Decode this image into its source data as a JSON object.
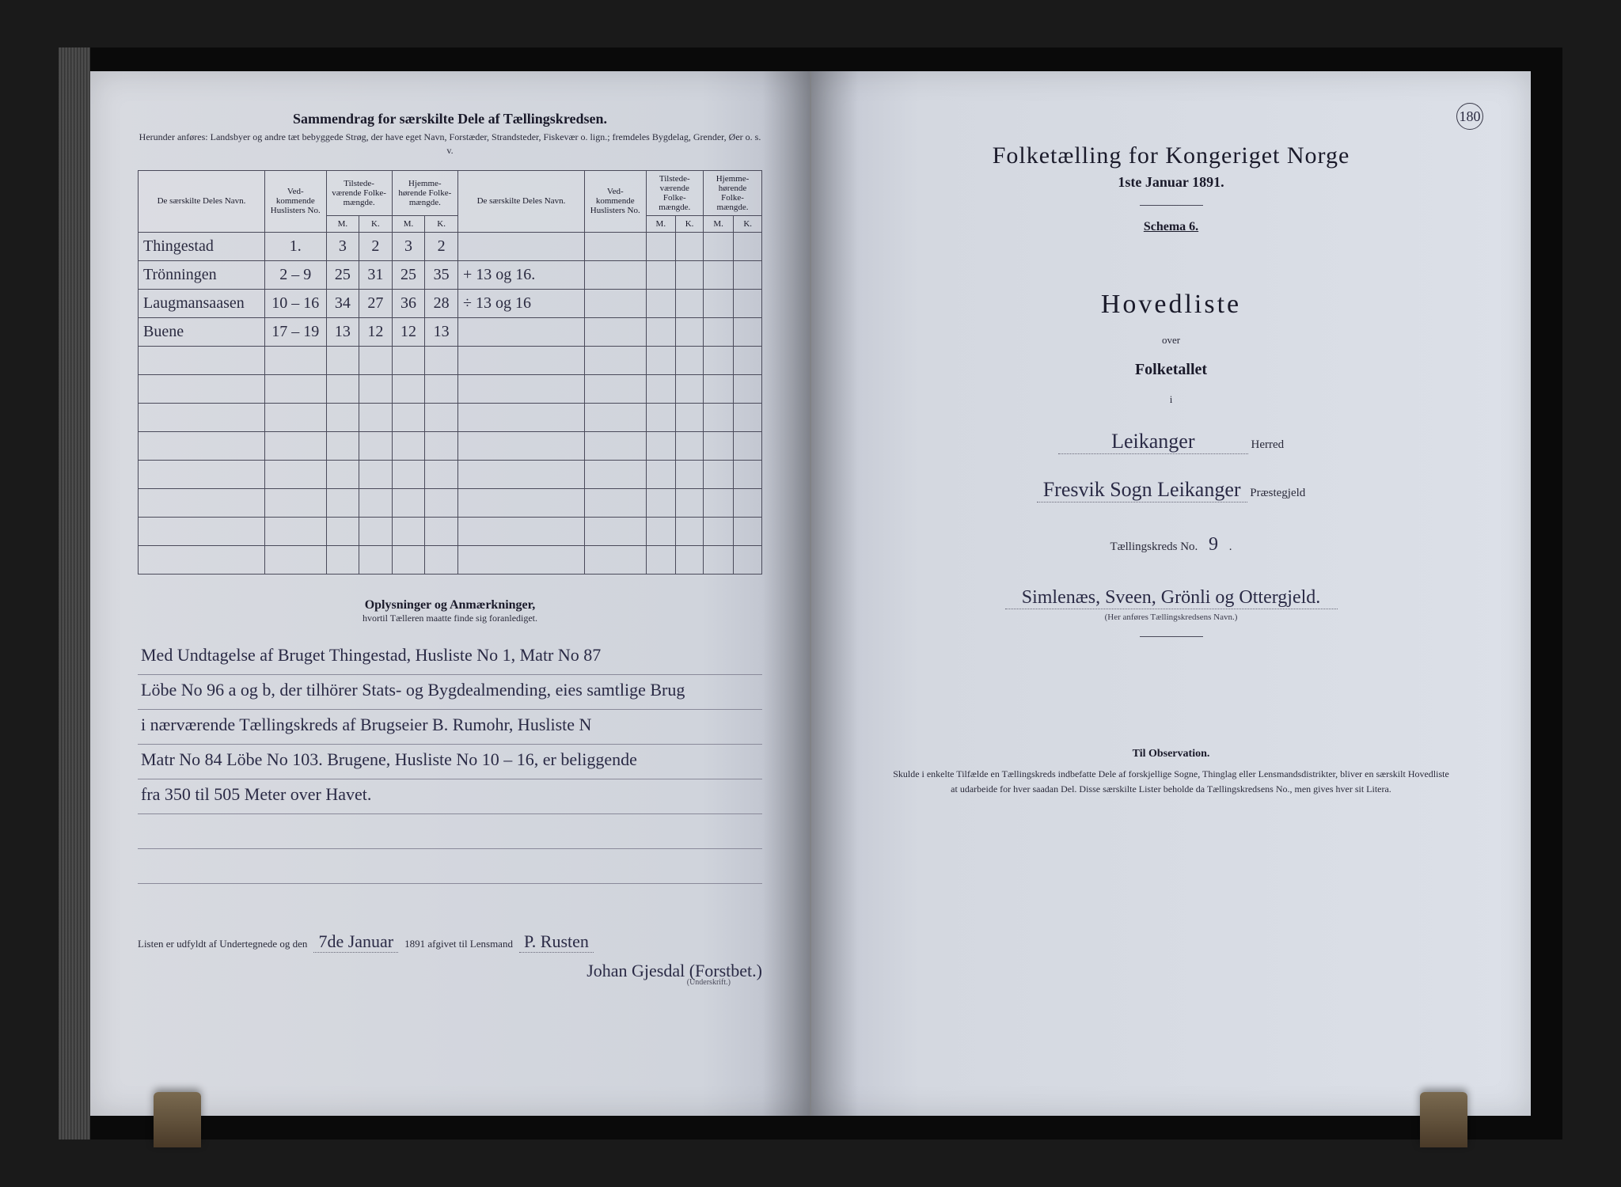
{
  "colors": {
    "paper": "#d4d8e0",
    "ink": "#1a1a2a",
    "handwriting": "#2a2a45",
    "rule": "#4a4a5a",
    "background": "#1a1a1a"
  },
  "leftPage": {
    "sectionTitle": "Sammendrag for særskilte Dele af Tællingskredsen.",
    "sectionSub": "Herunder anføres: Landsbyer og andre tæt bebyggede Strøg, der have eget Navn, Forstæder, Strandsteder, Fiskevær o. lign.; fremdeles Bygdelag, Grender, Øer o. s. v.",
    "table": {
      "headers": {
        "name": "De særskilte Deles Navn.",
        "listNo": "Ved-kommende Huslisters No.",
        "present": "Tilstede-værende Folke-mængde.",
        "resident": "Hjemme-hørende Folke-mængde.",
        "m": "M.",
        "k": "K."
      },
      "rows": [
        {
          "name": "Thingestad",
          "list": "1.",
          "pm": "3",
          "pk": "2",
          "rm": "3",
          "rk": "2",
          "note": ""
        },
        {
          "name": "Trönningen",
          "list": "2 – 9",
          "pm": "25",
          "pk": "31",
          "rm": "25",
          "rk": "35",
          "note": "+ 13 og 16."
        },
        {
          "name": "Laugmansaasen",
          "list": "10 – 16",
          "pm": "34",
          "pk": "27",
          "rm": "36",
          "rk": "28",
          "note": "÷ 13 og 16"
        },
        {
          "name": "Buene",
          "list": "17 – 19",
          "pm": "13",
          "pk": "12",
          "rm": "12",
          "rk": "13",
          "note": ""
        }
      ],
      "emptyRows": 8
    },
    "remarksTitle": "Oplysninger og Anmærkninger,",
    "remarksSub": "hvortil Tælleren maatte finde sig foranlediget.",
    "remarksLines": [
      "Med Undtagelse af Bruget Thingestad, Husliste No 1, Matr No 87",
      "Löbe No 96 a og b, der tilhörer Stats- og Bygdealmending, eies samtlige Brug",
      "i nærværende Tællingskreds af Brugseier B. Rumohr, Husliste N",
      "Matr No 84 Löbe No 103. Brugene, Husliste No 10 – 16, er beliggende",
      "fra 350 til 505 Meter over Havet."
    ],
    "signature": {
      "prefix": "Listen er udfyldt af Undertegnede og den",
      "date": "7de Januar",
      "year": "1891 afgivet til Lensmand",
      "lensmand": "P. Rusten",
      "underskrift": "Johan Gjesdal (Forstbet.)",
      "caption": "(Underskrift.)"
    }
  },
  "rightPage": {
    "pageNumber": "180",
    "title": "Folketælling for Kongeriget Norge",
    "date": "1ste Januar 1891.",
    "schema": "Schema 6.",
    "hovedliste": "Hovedliste",
    "over": "over",
    "folketallet": "Folketallet",
    "i": "i",
    "herred": {
      "value": "Leikanger",
      "label": "Herred"
    },
    "praestegjeld": {
      "value": "Fresvik Sogn Leikanger",
      "label": "Præstegjeld"
    },
    "kreds": {
      "label": "Tællingskreds No.",
      "value": "9",
      "suffix": "."
    },
    "kredsName": "Simlenæs, Sveen, Grönli og Ottergjeld.",
    "kredsCaption": "(Her anføres Tællingskredsens Navn.)",
    "observation": {
      "title": "Til Observation.",
      "body": "Skulde i enkelte Tilfælde en Tællingskreds indbefatte Dele af forskjellige Sogne, Thinglag eller Lensmandsdistrikter, bliver en særskilt Hovedliste at udarbeide for hver saadan Del. Disse særskilte Lister beholde da Tællingskredsens No., men gives hver sit Litera."
    }
  }
}
